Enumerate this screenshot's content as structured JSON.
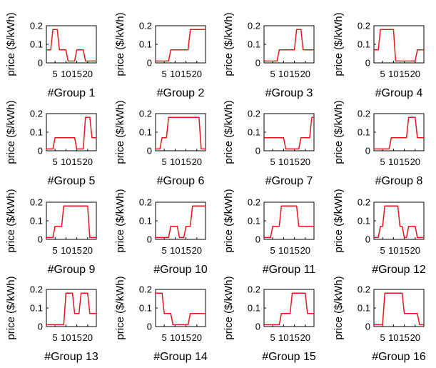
{
  "colors": {
    "series": "#e8161b",
    "axis": "#000000",
    "background": "#ffffff"
  },
  "chart_data": [
    {
      "type": "line",
      "xlabel": "#Group 1",
      "ylabel": "price ($/kWh)",
      "xticks": [
        5,
        10,
        15,
        20
      ],
      "yticks": [
        0,
        0.1,
        0.2
      ],
      "xlim": [
        1,
        24
      ],
      "ylim": [
        0,
        0.2
      ],
      "x": [
        1,
        2,
        3,
        4,
        5,
        6,
        7,
        8,
        9,
        10,
        11,
        12,
        13,
        14,
        15,
        16,
        17,
        18,
        19,
        20,
        21,
        22,
        23,
        24
      ],
      "y": [
        0.07,
        0.07,
        0.07,
        0.18,
        0.18,
        0.18,
        0.07,
        0.07,
        0.07,
        0.07,
        0.01,
        0.01,
        0.01,
        0.01,
        0.07,
        0.07,
        0.07,
        0.07,
        0.01,
        0.01,
        0.01,
        0.01,
        0.01,
        0.01
      ]
    },
    {
      "type": "line",
      "xlabel": "#Group 2",
      "ylabel": "price ($/kWh)",
      "xticks": [
        5,
        10,
        15,
        20
      ],
      "yticks": [
        0,
        0.1,
        0.2
      ],
      "xlim": [
        1,
        24
      ],
      "ylim": [
        0,
        0.2
      ],
      "x": [
        1,
        2,
        3,
        4,
        5,
        6,
        7,
        8,
        9,
        10,
        11,
        12,
        13,
        14,
        15,
        16,
        17,
        18,
        19,
        20,
        21,
        22,
        23,
        24
      ],
      "y": [
        0.01,
        0.01,
        0.01,
        0.01,
        0.01,
        0.01,
        0.01,
        0.07,
        0.07,
        0.07,
        0.07,
        0.07,
        0.07,
        0.07,
        0.07,
        0.07,
        0.18,
        0.18,
        0.18,
        0.18,
        0.18,
        0.18,
        0.18,
        0.18
      ]
    },
    {
      "type": "line",
      "xlabel": "#Group 3",
      "ylabel": "price ($/kWh)",
      "xticks": [
        5,
        10,
        15,
        20
      ],
      "yticks": [
        0,
        0.1,
        0.2
      ],
      "xlim": [
        1,
        24
      ],
      "ylim": [
        0,
        0.2
      ],
      "x": [
        1,
        2,
        3,
        4,
        5,
        6,
        7,
        8,
        9,
        10,
        11,
        12,
        13,
        14,
        15,
        16,
        17,
        18,
        19,
        20,
        21,
        22,
        23,
        24
      ],
      "y": [
        0.01,
        0.01,
        0.01,
        0.01,
        0.01,
        0.01,
        0.01,
        0.07,
        0.07,
        0.07,
        0.07,
        0.07,
        0.07,
        0.07,
        0.07,
        0.18,
        0.18,
        0.18,
        0.07,
        0.07,
        0.07,
        0.07,
        0.07,
        0.07
      ]
    },
    {
      "type": "line",
      "xlabel": "#Group 4",
      "ylabel": "price ($/kWh)",
      "xticks": [
        5,
        10,
        15,
        20
      ],
      "yticks": [
        0,
        0.1,
        0.2
      ],
      "xlim": [
        1,
        24
      ],
      "ylim": [
        0,
        0.2
      ],
      "x": [
        1,
        2,
        3,
        4,
        5,
        6,
        7,
        8,
        9,
        10,
        11,
        12,
        13,
        14,
        15,
        16,
        17,
        18,
        19,
        20,
        21,
        22,
        23,
        24
      ],
      "y": [
        0.07,
        0.07,
        0.07,
        0.18,
        0.18,
        0.18,
        0.18,
        0.18,
        0.18,
        0.18,
        0.01,
        0.01,
        0.01,
        0.01,
        0.01,
        0.01,
        0.01,
        0.01,
        0.01,
        0.01,
        0.07,
        0.07,
        0.07,
        0.07
      ]
    },
    {
      "type": "line",
      "xlabel": "#Group 5",
      "ylabel": "price ($/kWh)",
      "xticks": [
        5,
        10,
        15,
        20
      ],
      "yticks": [
        0,
        0.1,
        0.2
      ],
      "xlim": [
        1,
        24
      ],
      "ylim": [
        0,
        0.2
      ],
      "x": [
        1,
        2,
        3,
        4,
        5,
        6,
        7,
        8,
        9,
        10,
        11,
        12,
        13,
        14,
        15,
        16,
        17,
        18,
        19,
        20,
        21,
        22,
        23,
        24
      ],
      "y": [
        0.01,
        0.01,
        0.01,
        0.01,
        0.07,
        0.07,
        0.07,
        0.07,
        0.07,
        0.07,
        0.07,
        0.07,
        0.07,
        0.07,
        0.01,
        0.01,
        0.01,
        0.01,
        0.18,
        0.18,
        0.18,
        0.07,
        0.07,
        0.07
      ]
    },
    {
      "type": "line",
      "xlabel": "#Group 6",
      "ylabel": "price ($/kWh)",
      "xticks": [
        5,
        10,
        15,
        20
      ],
      "yticks": [
        0,
        0.1,
        0.2
      ],
      "xlim": [
        1,
        24
      ],
      "ylim": [
        0,
        0.2
      ],
      "x": [
        1,
        2,
        3,
        4,
        5,
        6,
        7,
        8,
        9,
        10,
        11,
        12,
        13,
        14,
        15,
        16,
        17,
        18,
        19,
        20,
        21,
        22,
        23,
        24
      ],
      "y": [
        0.01,
        0.01,
        0.01,
        0.07,
        0.07,
        0.07,
        0.18,
        0.18,
        0.18,
        0.18,
        0.18,
        0.18,
        0.18,
        0.18,
        0.18,
        0.18,
        0.18,
        0.18,
        0.18,
        0.18,
        0.18,
        0.01,
        0.01,
        0.01
      ]
    },
    {
      "type": "line",
      "xlabel": "#Group 7",
      "ylabel": "price ($/kWh)",
      "xticks": [
        5,
        10,
        15,
        20
      ],
      "yticks": [
        0,
        0.1,
        0.2
      ],
      "xlim": [
        1,
        24
      ],
      "ylim": [
        0,
        0.2
      ],
      "x": [
        1,
        2,
        3,
        4,
        5,
        6,
        7,
        8,
        9,
        10,
        11,
        12,
        13,
        14,
        15,
        16,
        17,
        18,
        19,
        20,
        21,
        22,
        23,
        24
      ],
      "y": [
        0.07,
        0.07,
        0.07,
        0.07,
        0.07,
        0.07,
        0.07,
        0.07,
        0.07,
        0.07,
        0.01,
        0.01,
        0.01,
        0.01,
        0.01,
        0.01,
        0.01,
        0.07,
        0.07,
        0.07,
        0.07,
        0.07,
        0.18,
        0.18
      ]
    },
    {
      "type": "line",
      "xlabel": "#Group 8",
      "ylabel": "price ($/kWh)",
      "xticks": [
        5,
        10,
        15,
        20
      ],
      "yticks": [
        0,
        0.1,
        0.2
      ],
      "xlim": [
        1,
        24
      ],
      "ylim": [
        0,
        0.2
      ],
      "x": [
        1,
        2,
        3,
        4,
        5,
        6,
        7,
        8,
        9,
        10,
        11,
        12,
        13,
        14,
        15,
        16,
        17,
        18,
        19,
        20,
        21,
        22,
        23,
        24
      ],
      "y": [
        0.01,
        0.01,
        0.01,
        0.01,
        0.01,
        0.01,
        0.01,
        0.01,
        0.07,
        0.07,
        0.07,
        0.07,
        0.07,
        0.07,
        0.07,
        0.07,
        0.18,
        0.18,
        0.18,
        0.18,
        0.07,
        0.07,
        0.07,
        0.07
      ]
    },
    {
      "type": "line",
      "xlabel": "#Group 9",
      "ylabel": "price ($/kWh)",
      "xticks": [
        5,
        10,
        15,
        20
      ],
      "yticks": [
        0,
        0.1,
        0.2
      ],
      "xlim": [
        1,
        24
      ],
      "ylim": [
        0,
        0.2
      ],
      "x": [
        1,
        2,
        3,
        4,
        5,
        6,
        7,
        8,
        9,
        10,
        11,
        12,
        13,
        14,
        15,
        16,
        17,
        18,
        19,
        20,
        21,
        22,
        23,
        24
      ],
      "y": [
        0.01,
        0.01,
        0.01,
        0.01,
        0.07,
        0.07,
        0.07,
        0.07,
        0.18,
        0.18,
        0.18,
        0.18,
        0.18,
        0.18,
        0.18,
        0.18,
        0.18,
        0.18,
        0.18,
        0.18,
        0.01,
        0.01,
        0.01,
        0.01
      ]
    },
    {
      "type": "line",
      "xlabel": "#Group 10",
      "ylabel": "price ($/kWh)",
      "xticks": [
        5,
        10,
        15,
        20
      ],
      "yticks": [
        0,
        0.1,
        0.2
      ],
      "xlim": [
        1,
        24
      ],
      "ylim": [
        0,
        0.2
      ],
      "x": [
        1,
        2,
        3,
        4,
        5,
        6,
        7,
        8,
        9,
        10,
        11,
        12,
        13,
        14,
        15,
        16,
        17,
        18,
        19,
        20,
        21,
        22,
        23,
        24
      ],
      "y": [
        0.01,
        0.01,
        0.01,
        0.01,
        0.01,
        0.01,
        0.01,
        0.07,
        0.07,
        0.07,
        0.07,
        0.01,
        0.01,
        0.01,
        0.07,
        0.07,
        0.07,
        0.18,
        0.18,
        0.18,
        0.18,
        0.18,
        0.18,
        0.18
      ]
    },
    {
      "type": "line",
      "xlabel": "#Group 11",
      "ylabel": "price ($/kWh)",
      "xticks": [
        5,
        10,
        15,
        20
      ],
      "yticks": [
        0,
        0.1,
        0.2
      ],
      "xlim": [
        1,
        24
      ],
      "ylim": [
        0,
        0.2
      ],
      "x": [
        1,
        2,
        3,
        4,
        5,
        6,
        7,
        8,
        9,
        10,
        11,
        12,
        13,
        14,
        15,
        16,
        17,
        18,
        19,
        20,
        21,
        22,
        23,
        24
      ],
      "y": [
        0.01,
        0.01,
        0.01,
        0.01,
        0.07,
        0.07,
        0.07,
        0.07,
        0.18,
        0.18,
        0.18,
        0.18,
        0.18,
        0.18,
        0.18,
        0.18,
        0.07,
        0.07,
        0.07,
        0.07,
        0.07,
        0.07,
        0.07,
        0.07
      ]
    },
    {
      "type": "line",
      "xlabel": "#Group 12",
      "ylabel": "price ($/kWh)",
      "xticks": [
        5,
        10,
        15,
        20
      ],
      "yticks": [
        0,
        0.1,
        0.2
      ],
      "xlim": [
        1,
        24
      ],
      "ylim": [
        0,
        0.2
      ],
      "x": [
        1,
        2,
        3,
        4,
        5,
        6,
        7,
        8,
        9,
        10,
        11,
        12,
        13,
        14,
        15,
        16,
        17,
        18,
        19,
        20,
        21,
        22,
        23,
        24
      ],
      "y": [
        0.01,
        0.01,
        0.01,
        0.07,
        0.07,
        0.18,
        0.18,
        0.18,
        0.18,
        0.18,
        0.18,
        0.18,
        0.07,
        0.07,
        0.01,
        0.01,
        0.07,
        0.07,
        0.07,
        0.07,
        0.01,
        0.01,
        0.01,
        0.01
      ]
    },
    {
      "type": "line",
      "xlabel": "#Group 13",
      "ylabel": "price ($/kWh)",
      "xticks": [
        5,
        10,
        15,
        20
      ],
      "yticks": [
        0,
        0.1,
        0.2
      ],
      "xlim": [
        1,
        24
      ],
      "ylim": [
        0,
        0.2
      ],
      "x": [
        1,
        2,
        3,
        4,
        5,
        6,
        7,
        8,
        9,
        10,
        11,
        12,
        13,
        14,
        15,
        16,
        17,
        18,
        19,
        20,
        21,
        22,
        23,
        24
      ],
      "y": [
        0.01,
        0.01,
        0.01,
        0.01,
        0.01,
        0.01,
        0.01,
        0.01,
        0.01,
        0.18,
        0.18,
        0.18,
        0.18,
        0.07,
        0.07,
        0.07,
        0.18,
        0.18,
        0.18,
        0.18,
        0.07,
        0.07,
        0.07,
        0.07
      ]
    },
    {
      "type": "line",
      "xlabel": "#Group 14",
      "ylabel": "price ($/kWh)",
      "xticks": [
        5,
        10,
        15,
        20
      ],
      "yticks": [
        0,
        0.1,
        0.2
      ],
      "xlim": [
        1,
        24
      ],
      "ylim": [
        0,
        0.2
      ],
      "x": [
        1,
        2,
        3,
        4,
        5,
        6,
        7,
        8,
        9,
        10,
        11,
        12,
        13,
        14,
        15,
        16,
        17,
        18,
        19,
        20,
        21,
        22,
        23,
        24
      ],
      "y": [
        0.18,
        0.18,
        0.18,
        0.18,
        0.07,
        0.07,
        0.07,
        0.07,
        0.01,
        0.01,
        0.01,
        0.01,
        0.01,
        0.01,
        0.01,
        0.01,
        0.07,
        0.07,
        0.07,
        0.07,
        0.07,
        0.07,
        0.07,
        0.07
      ]
    },
    {
      "type": "line",
      "xlabel": "#Group 15",
      "ylabel": "price ($/kWh)",
      "xticks": [
        5,
        10,
        15,
        20
      ],
      "yticks": [
        0,
        0.1,
        0.2
      ],
      "xlim": [
        1,
        24
      ],
      "ylim": [
        0,
        0.2
      ],
      "x": [
        1,
        2,
        3,
        4,
        5,
        6,
        7,
        8,
        9,
        10,
        11,
        12,
        13,
        14,
        15,
        16,
        17,
        18,
        19,
        20,
        21,
        22,
        23,
        24
      ],
      "y": [
        0.01,
        0.01,
        0.01,
        0.01,
        0.01,
        0.01,
        0.01,
        0.01,
        0.07,
        0.07,
        0.07,
        0.07,
        0.07,
        0.18,
        0.18,
        0.18,
        0.18,
        0.18,
        0.18,
        0.18,
        0.07,
        0.07,
        0.07,
        0.07
      ]
    },
    {
      "type": "line",
      "xlabel": "#Group 16",
      "ylabel": "price ($/kWh)",
      "xticks": [
        5,
        10,
        15,
        20
      ],
      "yticks": [
        0,
        0.1,
        0.2
      ],
      "xlim": [
        1,
        24
      ],
      "ylim": [
        0,
        0.2
      ],
      "x": [
        1,
        2,
        3,
        4,
        5,
        6,
        7,
        8,
        9,
        10,
        11,
        12,
        13,
        14,
        15,
        16,
        17,
        18,
        19,
        20,
        21,
        22,
        23,
        24
      ],
      "y": [
        0.01,
        0.01,
        0.01,
        0.01,
        0.01,
        0.18,
        0.18,
        0.18,
        0.18,
        0.18,
        0.18,
        0.18,
        0.18,
        0.18,
        0.07,
        0.07,
        0.07,
        0.07,
        0.07,
        0.07,
        0.07,
        0.01,
        0.01,
        0.01
      ]
    }
  ]
}
